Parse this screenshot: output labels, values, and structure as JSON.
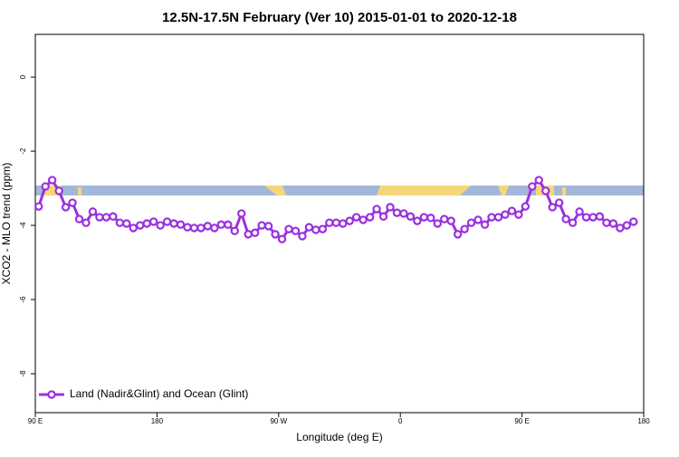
{
  "chart_data": {
    "type": "line",
    "title": "12.5N-17.5N February (Ver 10)   2015-01-01 to 2020-12-18",
    "xlabel": "Longitude (deg E)",
    "ylabel": "XCO2 - MLO trend (ppm)",
    "xlim": [
      90,
      540
    ],
    "ylim": [
      -9.05,
      1.15
    ],
    "xticks": [
      {
        "value": 90,
        "label": "90 E"
      },
      {
        "value": 180,
        "label": "180"
      },
      {
        "value": 270,
        "label": "90 W"
      },
      {
        "value": 360,
        "label": "0"
      },
      {
        "value": 450,
        "label": "90 E"
      },
      {
        "value": 540,
        "label": "180"
      }
    ],
    "yticks": [
      0,
      -2,
      -4,
      -6,
      -8
    ],
    "grid": false,
    "legend": "bottomleft",
    "x": [
      92.5,
      97.5,
      102.5,
      107.5,
      112.5,
      117.5,
      122.5,
      127.5,
      132.5,
      137.5,
      142.5,
      147.5,
      152.5,
      157.5,
      162.5,
      167.5,
      172.5,
      177.5,
      182.5,
      187.5,
      192.5,
      197.5,
      202.5,
      207.5,
      212.5,
      217.5,
      222.5,
      227.5,
      232.5,
      237.5,
      242.5,
      247.5,
      252.5,
      257.5,
      262.5,
      267.5,
      272.5,
      277.5,
      282.5,
      287.5,
      292.5,
      297.5,
      302.5,
      307.5,
      312.5,
      317.5,
      322.5,
      327.5,
      332.5,
      337.5,
      342.5,
      347.5,
      352.5,
      357.5,
      362.5,
      367.5,
      372.5,
      377.5,
      382.5,
      387.5,
      392.5,
      397.5,
      402.5,
      407.5,
      412.5,
      417.5,
      422.5,
      427.5,
      432.5,
      437.5,
      442.5,
      447.5,
      452.5,
      457.5,
      462.5,
      467.5,
      472.5,
      477.5,
      482.5,
      487.5,
      492.5,
      497.5,
      502.5,
      507.5,
      512.5,
      517.5,
      522.5,
      527.5,
      532.5
    ],
    "series": [
      {
        "name": "Land (Nadir&Glint) and Ocean (Glint)",
        "color": "#9b30e0",
        "values": [
          -3.49,
          -2.95,
          -2.78,
          -3.07,
          -3.51,
          -3.39,
          -3.83,
          -3.93,
          -3.63,
          -3.78,
          -3.78,
          -3.76,
          -3.93,
          -3.95,
          -4.07,
          -4.0,
          -3.95,
          -3.9,
          -4.0,
          -3.9,
          -3.95,
          -3.98,
          -4.05,
          -4.07,
          -4.07,
          -4.02,
          -4.07,
          -3.98,
          -3.98,
          -4.15,
          -3.68,
          -4.24,
          -4.2,
          -4.0,
          -4.02,
          -4.24,
          -4.37,
          -4.1,
          -4.15,
          -4.29,
          -4.05,
          -4.12,
          -4.1,
          -3.93,
          -3.93,
          -3.95,
          -3.88,
          -3.78,
          -3.85,
          -3.78,
          -3.56,
          -3.76,
          -3.51,
          -3.66,
          -3.68,
          -3.76,
          -3.88,
          -3.78,
          -3.8,
          -3.95,
          -3.83,
          -3.88,
          -4.24,
          -4.1,
          -3.93,
          -3.85,
          -3.98,
          -3.78,
          -3.78,
          -3.71,
          -3.61,
          -3.71,
          -3.49,
          -2.95,
          -2.78,
          -3.07,
          -3.51,
          -3.39,
          -3.83,
          -3.93,
          -3.63,
          -3.78,
          -3.78,
          -3.76,
          -3.93,
          -3.95,
          -4.07,
          -4.0,
          -3.9
        ]
      }
    ]
  }
}
